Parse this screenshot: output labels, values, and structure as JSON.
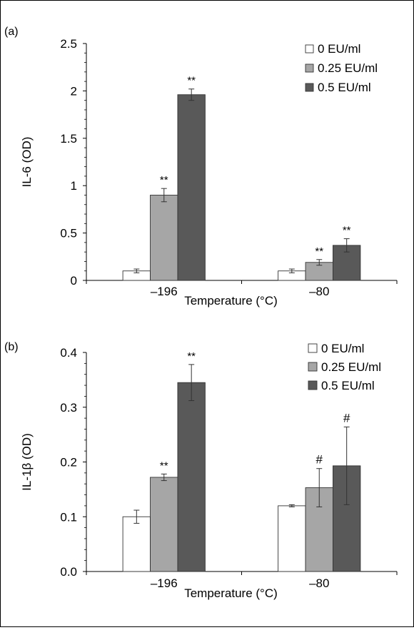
{
  "chart_data": [
    {
      "type": "bar",
      "panel_label": "(a)",
      "title": "",
      "xlabel": "Temperature (°C)",
      "ylabel": "IL-6 (OD)",
      "categories": [
        "–196",
        "–80"
      ],
      "ylim": [
        0,
        2.5
      ],
      "yticks": [
        "0",
        "0.5",
        "1",
        "1.5",
        "2",
        "2.5"
      ],
      "legend_position": "top-right",
      "series": [
        {
          "name": "0 EU/ml",
          "color": "#ffffff",
          "values": [
            0.1,
            0.1
          ],
          "errors": [
            0.02,
            0.02
          ],
          "annotations": [
            "",
            ""
          ]
        },
        {
          "name": "0.25 EU/ml",
          "color": "#a6a6a6",
          "values": [
            0.9,
            0.19
          ],
          "errors": [
            0.07,
            0.03
          ],
          "annotations": [
            "**",
            "**"
          ]
        },
        {
          "name": "0.5 EU/ml",
          "color": "#595959",
          "values": [
            1.96,
            0.37
          ],
          "errors": [
            0.06,
            0.07
          ],
          "annotations": [
            "**",
            "**"
          ]
        }
      ]
    },
    {
      "type": "bar",
      "panel_label": "(b)",
      "title": "",
      "xlabel": "Temperature (°C)",
      "ylabel": "IL-1β (OD)",
      "categories": [
        "–196",
        "–80"
      ],
      "ylim": [
        0,
        0.4
      ],
      "yticks": [
        "0.0",
        "0.1",
        "0.2",
        "0.3",
        "0.4"
      ],
      "legend_position": "top-right",
      "series": [
        {
          "name": "0 EU/ml",
          "color": "#ffffff",
          "values": [
            0.1,
            0.12
          ],
          "errors": [
            0.012,
            0.002
          ],
          "annotations": [
            "",
            ""
          ]
        },
        {
          "name": "0.25 EU/ml",
          "color": "#a6a6a6",
          "values": [
            0.172,
            0.153
          ],
          "errors": [
            0.006,
            0.035
          ],
          "annotations": [
            "**",
            "#"
          ]
        },
        {
          "name": "0.5 EU/ml",
          "color": "#595959",
          "values": [
            0.345,
            0.193
          ],
          "errors": [
            0.033,
            0.071
          ],
          "annotations": [
            "**",
            "#"
          ]
        }
      ]
    }
  ]
}
